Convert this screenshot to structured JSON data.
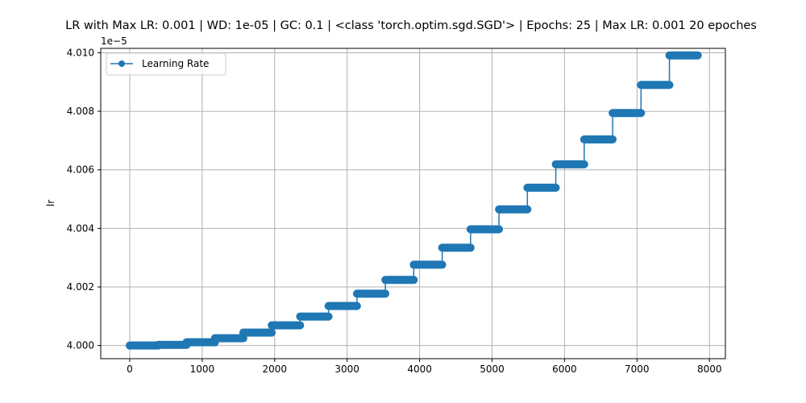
{
  "chart_data": {
    "type": "line",
    "title": "LR with Max LR: 0.001 | WD: 1e-05 | GC: 0.1 | <class 'torch.optim.sgd.SGD'> | Epochs: 25 | Max LR: 0.001 20 epoches",
    "xlabel": "",
    "ylabel": "lr",
    "y_offset_label": "1e−5",
    "xlim": [
      -400,
      8220
    ],
    "ylim": [
      3.99955,
      4.01015
    ],
    "x_ticks": [
      0,
      1000,
      2000,
      3000,
      4000,
      5000,
      6000,
      7000,
      8000
    ],
    "x_tick_labels": [
      "0",
      "1000",
      "2000",
      "3000",
      "4000",
      "5000",
      "6000",
      "7000",
      "8000"
    ],
    "y_ticks": [
      4.0,
      4.002,
      4.004,
      4.006,
      4.008,
      4.01
    ],
    "y_tick_labels": [
      "4.000",
      "4.002",
      "4.004",
      "4.006",
      "4.008",
      "4.010"
    ],
    "grid": true,
    "legend_position": "top-left",
    "series": [
      {
        "name": "Learning Rate",
        "color": "#1f77b4",
        "marker": "circle",
        "steps": [
          {
            "x_start": 0,
            "x_end": 391,
            "y": 4.0
          },
          {
            "x_start": 392,
            "x_end": 783,
            "y": 4.00002
          },
          {
            "x_start": 784,
            "x_end": 1175,
            "y": 4.00011
          },
          {
            "x_start": 1176,
            "x_end": 1567,
            "y": 4.00025
          },
          {
            "x_start": 1568,
            "x_end": 1959,
            "y": 4.00044
          },
          {
            "x_start": 1960,
            "x_end": 2351,
            "y": 4.00069
          },
          {
            "x_start": 2352,
            "x_end": 2743,
            "y": 4.00099
          },
          {
            "x_start": 2744,
            "x_end": 3135,
            "y": 4.00135
          },
          {
            "x_start": 3136,
            "x_end": 3527,
            "y": 4.00177
          },
          {
            "x_start": 3528,
            "x_end": 3919,
            "y": 4.00224
          },
          {
            "x_start": 3920,
            "x_end": 4311,
            "y": 4.00276
          },
          {
            "x_start": 4312,
            "x_end": 4703,
            "y": 4.00334
          },
          {
            "x_start": 4704,
            "x_end": 5095,
            "y": 4.00397
          },
          {
            "x_start": 5096,
            "x_end": 5487,
            "y": 4.00465
          },
          {
            "x_start": 5488,
            "x_end": 5879,
            "y": 4.00539
          },
          {
            "x_start": 5880,
            "x_end": 6271,
            "y": 4.00619
          },
          {
            "x_start": 6272,
            "x_end": 6663,
            "y": 4.00704
          },
          {
            "x_start": 6664,
            "x_end": 7055,
            "y": 4.00794
          },
          {
            "x_start": 7056,
            "x_end": 7447,
            "y": 4.0089
          },
          {
            "x_start": 7448,
            "x_end": 7839,
            "y": 4.00991
          }
        ]
      }
    ]
  }
}
